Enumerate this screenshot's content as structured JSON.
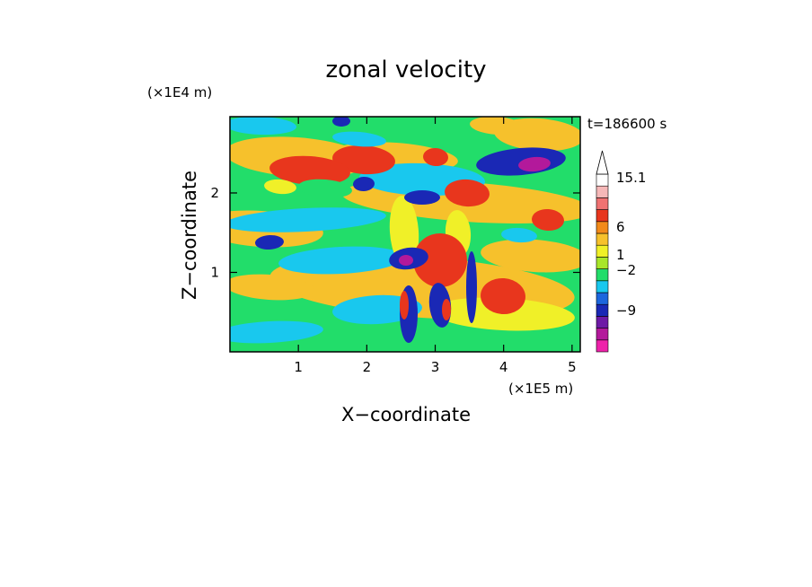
{
  "chart_data": {
    "type": "heatmap",
    "title": "zonal velocity",
    "xlabel": "X−coordinate",
    "ylabel": "Z−coordinate",
    "x_unit": "(×1E5 m)",
    "y_unit": "(×1E4 m)",
    "time_label": "t=186600 s",
    "xlim": [
      0,
      5.12
    ],
    "ylim": [
      0,
      2.96
    ],
    "x_ticks": [
      {
        "value": 1,
        "label": "1"
      },
      {
        "value": 2,
        "label": "2"
      },
      {
        "value": 3,
        "label": "3"
      },
      {
        "value": 4,
        "label": "4"
      },
      {
        "value": 5,
        "label": "5"
      }
    ],
    "y_ticks": [
      {
        "value": 1,
        "label": "1"
      },
      {
        "value": 2,
        "label": "2"
      }
    ],
    "colorbar": {
      "colors": [
        "#ee22aa",
        "#b3199b",
        "#6e1aa6",
        "#1a28b5",
        "#1d66dd",
        "#19c8ee",
        "#22dd6a",
        "#a8e62a",
        "#f0f028",
        "#f6c12c",
        "#f28a1a",
        "#e8361d",
        "#f07272",
        "#f6b8b8",
        "#ffffff"
      ],
      "labels": [
        {
          "value": 15.1,
          "text": "15.1"
        },
        {
          "value": 6,
          "text": "6"
        },
        {
          "value": 1,
          "text": "1"
        },
        {
          "value": -2,
          "text": "−2"
        },
        {
          "value": -9,
          "text": "−9"
        }
      ]
    },
    "grid": false
  }
}
